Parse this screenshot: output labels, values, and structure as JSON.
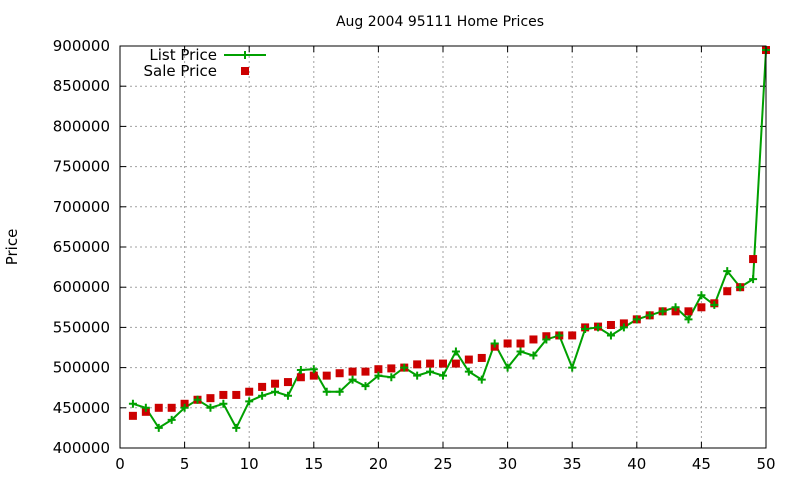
{
  "chart_data": {
    "type": "line",
    "title": "Aug 2004 95111 Home Prices",
    "xlabel": "",
    "ylabel": "Price",
    "xlim": [
      0,
      50
    ],
    "ylim": [
      400000,
      900000
    ],
    "xticks": [
      "0",
      "5",
      "10",
      "15",
      "20",
      "25",
      "30",
      "35",
      "40",
      "45",
      "50"
    ],
    "yticks": [
      "400000",
      "450000",
      "500000",
      "550000",
      "600000",
      "650000",
      "700000",
      "750000",
      "800000",
      "850000",
      "900000"
    ],
    "grid": true,
    "legend_position": "top-left",
    "x": [
      1,
      2,
      3,
      4,
      5,
      6,
      7,
      8,
      9,
      10,
      11,
      12,
      13,
      14,
      15,
      16,
      17,
      18,
      19,
      20,
      21,
      22,
      23,
      24,
      25,
      26,
      27,
      28,
      29,
      30,
      31,
      32,
      33,
      34,
      35,
      36,
      37,
      38,
      39,
      40,
      41,
      42,
      43,
      44,
      45,
      46,
      47,
      48,
      49,
      50
    ],
    "series": [
      {
        "name": "List Price",
        "style": "line-points",
        "color": "#00a000",
        "values": [
          455000,
          450000,
          425000,
          435000,
          450000,
          460000,
          450000,
          455000,
          425000,
          458000,
          465000,
          470000,
          465000,
          497000,
          498000,
          470000,
          470000,
          485000,
          477000,
          490000,
          488000,
          500000,
          490000,
          495000,
          490000,
          520000,
          495000,
          485000,
          530000,
          500000,
          520000,
          515000,
          535000,
          540000,
          500000,
          548000,
          550000,
          540000,
          550000,
          560000,
          565000,
          570000,
          575000,
          560000,
          590000,
          578000,
          620000,
          600000,
          610000,
          895000
        ]
      },
      {
        "name": "Sale Price",
        "style": "points",
        "color": "#cc0000",
        "values": [
          440000,
          445000,
          450000,
          450000,
          455000,
          460000,
          462000,
          466000,
          466000,
          470000,
          476000,
          480000,
          482000,
          488000,
          490000,
          490000,
          493000,
          495000,
          495000,
          498000,
          499000,
          500000,
          504000,
          505000,
          505000,
          505000,
          510000,
          512000,
          526000,
          530000,
          530000,
          535000,
          539000,
          540000,
          540000,
          550000,
          551000,
          553000,
          555000,
          560000,
          565000,
          570000,
          570000,
          570000,
          575000,
          580000,
          595000,
          600000,
          635000,
          895000
        ]
      }
    ]
  }
}
